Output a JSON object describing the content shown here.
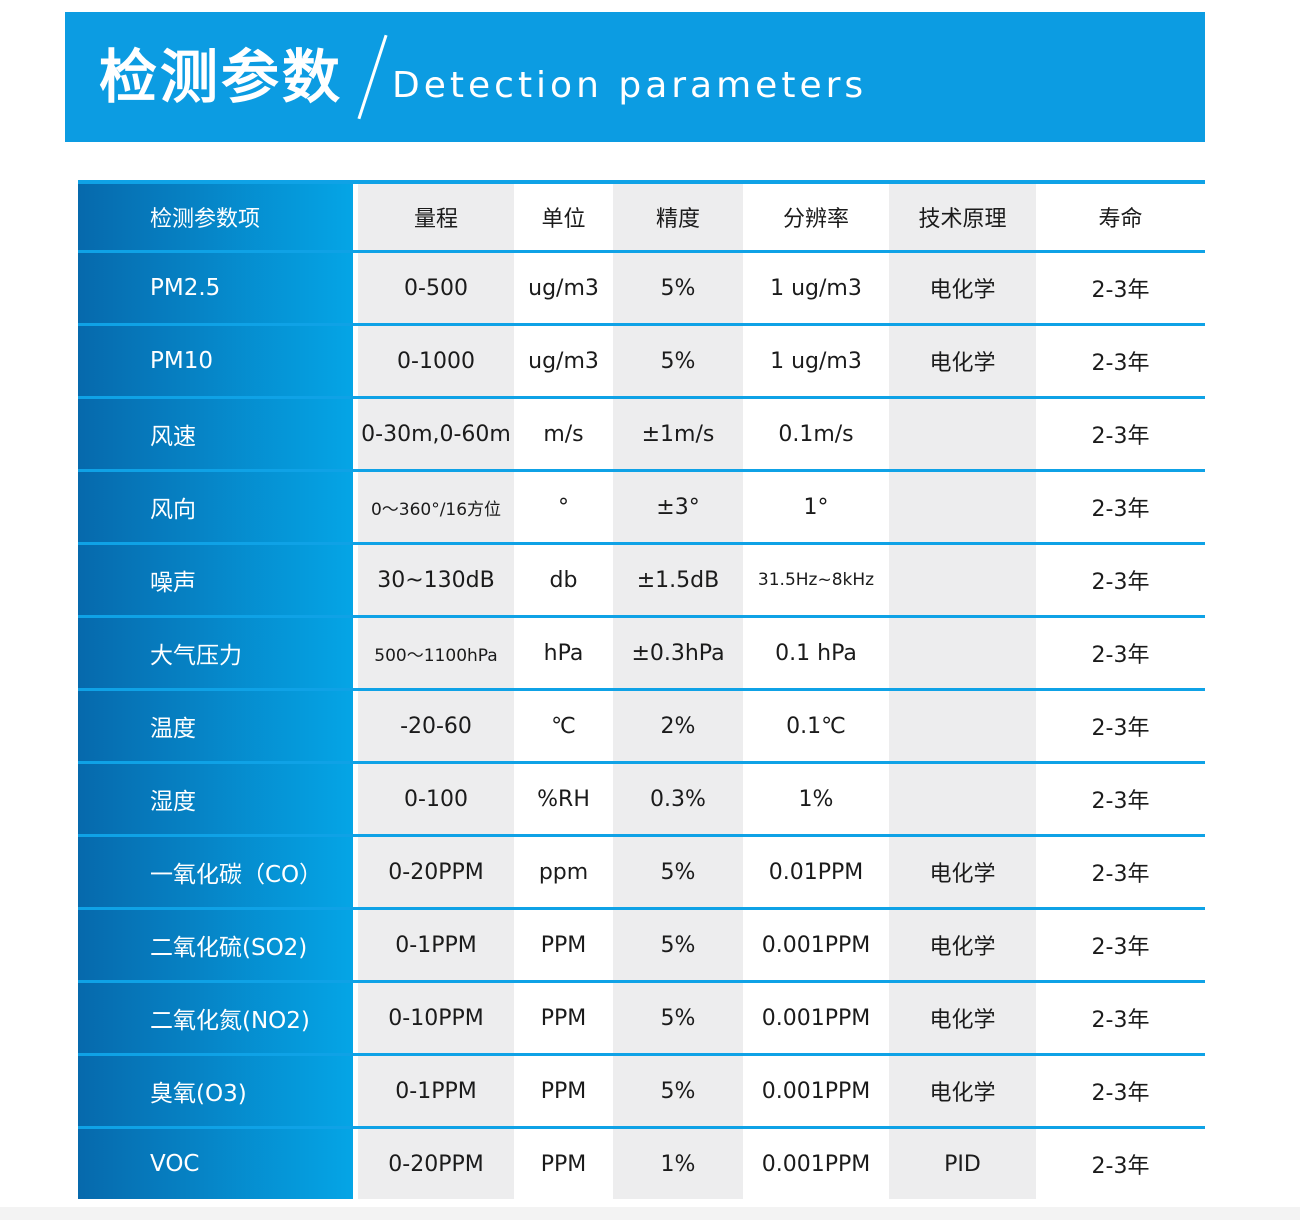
{
  "banner": {
    "title_zh": "检测参数",
    "title_en": "Detection parameters"
  },
  "table": {
    "headers": [
      "检测参数项",
      "量程",
      "单位",
      "精度",
      "分辨率",
      "技术原理",
      "寿命"
    ],
    "rows": [
      {
        "param": "PM2.5",
        "range": "0-500",
        "unit": "ug/m3",
        "accuracy": "5%",
        "resolution": "1 ug/m3",
        "principle": "电化学",
        "lifespan": "2-3年"
      },
      {
        "param": "PM10",
        "range": "0-1000",
        "unit": "ug/m3",
        "accuracy": "5%",
        "resolution": "1 ug/m3",
        "principle": "电化学",
        "lifespan": "2-3年"
      },
      {
        "param": "风速",
        "range": "0-30m,0-60m",
        "unit": "m/s",
        "accuracy": "±1m/s",
        "resolution": "0.1m/s",
        "principle": "",
        "lifespan": "2-3年"
      },
      {
        "param": "风向",
        "range": "0～360°/16方位",
        "range_small": true,
        "unit": "°",
        "accuracy": "±3°",
        "resolution": "1°",
        "principle": "",
        "lifespan": "2-3年"
      },
      {
        "param": "噪声",
        "range": "30~130dB",
        "unit": "db",
        "accuracy": "±1.5dB",
        "resolution": "31.5Hz~8kHz",
        "resolution_small": true,
        "principle": "",
        "lifespan": "2-3年"
      },
      {
        "param": "大气压力",
        "range": "500～1100hPa",
        "range_small": true,
        "unit": "hPa",
        "accuracy": "±0.3hPa",
        "resolution": "0.1 hPa",
        "principle": "",
        "lifespan": "2-3年"
      },
      {
        "param": "温度",
        "range": "-20-60",
        "unit": "℃",
        "accuracy": "2%",
        "resolution": "0.1℃",
        "principle": "",
        "lifespan": "2-3年"
      },
      {
        "param": "湿度",
        "range": "0-100",
        "unit": "%RH",
        "accuracy": "0.3%",
        "resolution": "1%",
        "principle": "",
        "lifespan": "2-3年"
      },
      {
        "param": "一氧化碳（CO）",
        "range": "0-20PPM",
        "unit": "ppm",
        "accuracy": "5%",
        "resolution": "0.01PPM",
        "principle": "电化学",
        "lifespan": "2-3年"
      },
      {
        "param": "二氧化硫(SO2)",
        "range": "0-1PPM",
        "unit": "PPM",
        "accuracy": "5%",
        "resolution": "0.001PPM",
        "principle": "电化学",
        "lifespan": "2-3年"
      },
      {
        "param": "二氧化氮(NO2)",
        "range": "0-10PPM",
        "unit": "PPM",
        "accuracy": "5%",
        "resolution": "0.001PPM",
        "principle": "电化学",
        "lifespan": "2-3年"
      },
      {
        "param": "臭氧(O3)",
        "range": "0-1PPM",
        "unit": "PPM",
        "accuracy": "5%",
        "resolution": "0.001PPM",
        "principle": "电化学",
        "lifespan": "2-3年"
      },
      {
        "param": "VOC",
        "range": "0-20PPM",
        "unit": "PPM",
        "accuracy": "1%",
        "resolution": "0.001PPM",
        "principle": "PID",
        "lifespan": "2-3年"
      }
    ]
  },
  "colors": {
    "banner_blue": "#0c9ce2",
    "separator_blue": "#0fa2e6",
    "cell_gray": "#ededee",
    "param_gradient_start": "#0669ac",
    "param_gradient_end": "#05a5e6",
    "text_dark": "#1b1b1b"
  }
}
